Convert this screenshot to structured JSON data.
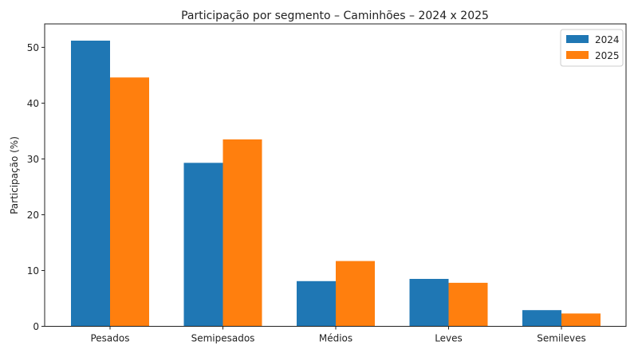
{
  "chart_data": {
    "type": "bar",
    "title": "Participação por segmento – Caminhões – 2024 x 2025",
    "xlabel": "",
    "ylabel": "Participação (%)",
    "ylim": [
      0,
      54.2
    ],
    "yticks": [
      0,
      10,
      20,
      30,
      40,
      50
    ],
    "ytick_labels": [
      "0",
      "10",
      "20",
      "30",
      "40",
      "50"
    ],
    "categories": [
      "Pesados",
      "Semipesados",
      "Médios",
      "Leves",
      "Semileves"
    ],
    "series": [
      {
        "name": "2024",
        "color": "#1f77b4",
        "values": [
          51.2,
          29.3,
          8.1,
          8.5,
          2.9
        ]
      },
      {
        "name": "2025",
        "color": "#ff7f0e",
        "values": [
          44.6,
          33.5,
          11.7,
          7.8,
          2.3
        ]
      }
    ],
    "grid": false,
    "legend_position": "top-right"
  }
}
